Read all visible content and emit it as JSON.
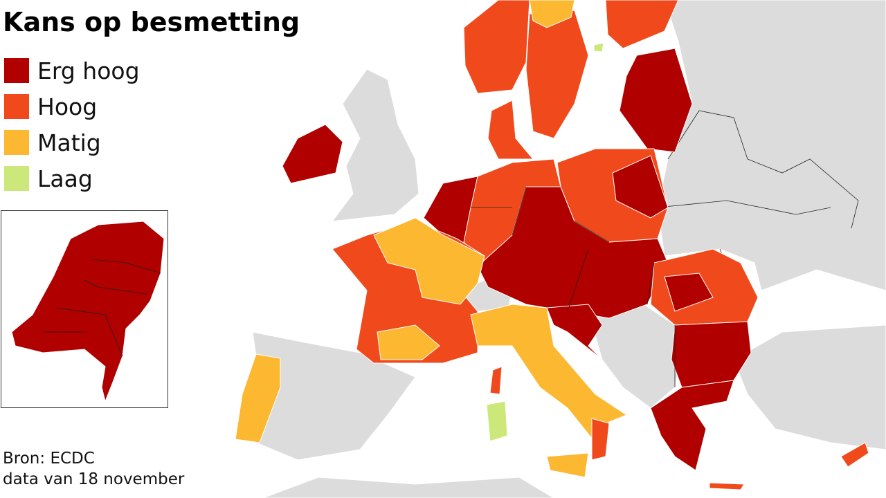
{
  "title": "Kans op besmetting",
  "legend": [
    {
      "label": "Erg hoog",
      "color": "#b00000"
    },
    {
      "label": "Hoog",
      "color": "#f04a1c"
    },
    {
      "label": "Matig",
      "color": "#fbb830"
    },
    {
      "label": "Laag",
      "color": "#cde87a"
    }
  ],
  "source": "Bron: ECDC",
  "date_note": "data van 18 november"
}
